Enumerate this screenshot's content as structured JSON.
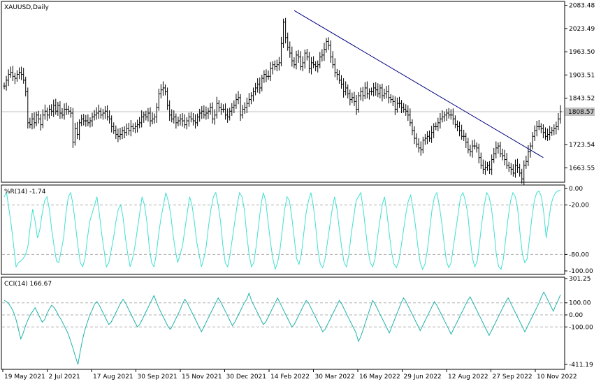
{
  "chart_data": [
    {
      "type": "candlestick",
      "title": "XAUUSD,Daily",
      "ylim": [
        1630,
        2090
      ],
      "yticks": [
        2083.48,
        2023.49,
        1963.5,
        1903.51,
        1843.52,
        1723.54,
        1663.55
      ],
      "ytick_labels": [
        "2083.48",
        "2023.49",
        "1963.50",
        "1903.51",
        "1843.52",
        "1723.54",
        "1663.55"
      ],
      "current_price_label": "1808.57",
      "current_price": 1808.57,
      "x_date_labels": [
        "19 May 2021",
        "2 Jul 2021",
        "17 Aug 2021",
        "30 Sep 2021",
        "15 Nov 2021",
        "30 Dec 2021",
        "14 Feb 2022",
        "30 Mar 2022",
        "16 May 2022",
        "29 Jun 2022",
        "12 Aug 2022",
        "27 Sep 2022",
        "10 Nov 2022"
      ],
      "trendline": {
        "from": [
          "8 Mar 2022",
          2070
        ],
        "to": [
          "7 Nov 2022",
          1690
        ]
      },
      "close": [
        1875,
        1890,
        1905,
        1910,
        1900,
        1895,
        1905,
        1910,
        1905,
        1890,
        1860,
        1780,
        1775,
        1790,
        1780,
        1800,
        1790,
        1775,
        1800,
        1810,
        1800,
        1815,
        1810,
        1825,
        1810,
        1825,
        1805,
        1800,
        1815,
        1815,
        1810,
        1805,
        1730,
        1765,
        1750,
        1780,
        1790,
        1785,
        1785,
        1780,
        1785,
        1795,
        1800,
        1805,
        1810,
        1800,
        1805,
        1810,
        1795,
        1790,
        1770,
        1760,
        1750,
        1745,
        1750,
        1760,
        1755,
        1765,
        1760,
        1770,
        1765,
        1770,
        1775,
        1780,
        1795,
        1800,
        1795,
        1805,
        1785,
        1790,
        1795,
        1820,
        1855,
        1865,
        1870,
        1860,
        1825,
        1800,
        1790,
        1795,
        1780,
        1785,
        1790,
        1785,
        1775,
        1785,
        1795,
        1790,
        1785,
        1780,
        1795,
        1805,
        1810,
        1800,
        1805,
        1810,
        1820,
        1790,
        1800,
        1830,
        1820,
        1815,
        1815,
        1800,
        1795,
        1810,
        1820,
        1825,
        1840,
        1845,
        1800,
        1815,
        1820,
        1830,
        1840,
        1850,
        1860,
        1870,
        1880,
        1870,
        1895,
        1905,
        1900,
        1900,
        1920,
        1930,
        1925,
        1930,
        1935,
        1985,
        2040,
        2000,
        1975,
        1960,
        1940,
        1930,
        1955,
        1950,
        1925,
        1935,
        1960,
        1950,
        1920,
        1935,
        1930,
        1925,
        1930,
        1950,
        1955,
        1970,
        1990,
        1980,
        1950,
        1930,
        1910,
        1905,
        1890,
        1880,
        1860,
        1870,
        1855,
        1840,
        1845,
        1835,
        1815,
        1850,
        1860,
        1850,
        1870,
        1855,
        1860,
        1860,
        1870,
        1865,
        1855,
        1870,
        1850,
        1855,
        1860,
        1845,
        1840,
        1835,
        1815,
        1830,
        1830,
        1820,
        1815,
        1810,
        1800,
        1780,
        1760,
        1740,
        1725,
        1715,
        1710,
        1735,
        1740,
        1745,
        1740,
        1755,
        1770,
        1770,
        1780,
        1790,
        1795,
        1800,
        1805,
        1800,
        1800,
        1790,
        1775,
        1770,
        1760,
        1745,
        1745,
        1730,
        1710,
        1705,
        1720,
        1720,
        1715,
        1690,
        1670,
        1660,
        1665,
        1670,
        1660,
        1685,
        1700,
        1715,
        1720,
        1700,
        1695,
        1685,
        1670,
        1665,
        1660,
        1650,
        1670,
        1665,
        1650,
        1635,
        1670,
        1680,
        1705,
        1720,
        1745,
        1760,
        1770,
        1770,
        1765,
        1755,
        1745,
        1750,
        1755,
        1760,
        1765,
        1770,
        1790,
        1808.57
      ]
    },
    {
      "type": "line",
      "title": "%R(14) -1.74",
      "ylim": [
        -100,
        0
      ],
      "yticks": [
        0,
        -20,
        -80,
        -100
      ],
      "ytick_labels": [
        "0.00",
        "-20.00",
        "-80.00",
        "-100.00"
      ],
      "levels": [
        -20,
        -80
      ],
      "color": "#40e0d0",
      "values": [
        -10,
        -5,
        -25,
        -45,
        -70,
        -95,
        -90,
        -88,
        -85,
        -80,
        -70,
        -45,
        -25,
        -40,
        -60,
        -50,
        -30,
        -15,
        -10,
        -25,
        -50,
        -70,
        -88,
        -90,
        -75,
        -60,
        -30,
        -10,
        -5,
        -20,
        -45,
        -70,
        -90,
        -95,
        -85,
        -60,
        -40,
        -30,
        -20,
        -10,
        -30,
        -55,
        -75,
        -95,
        -90,
        -75,
        -60,
        -40,
        -25,
        -20,
        -35,
        -60,
        -80,
        -95,
        -85,
        -70,
        -50,
        -30,
        -10,
        -20,
        -40,
        -70,
        -90,
        -95,
        -80,
        -55,
        -35,
        -20,
        -5,
        -15,
        -30,
        -55,
        -75,
        -90,
        -80,
        -70,
        -50,
        -30,
        -10,
        -20,
        -40,
        -65,
        -80,
        -95,
        -85,
        -70,
        -45,
        -25,
        -10,
        -5,
        -20,
        -40,
        -70,
        -90,
        -95,
        -80,
        -60,
        -40,
        -20,
        -5,
        -10,
        -25,
        -55,
        -80,
        -95,
        -90,
        -70,
        -45,
        -20,
        -5,
        -15,
        -40,
        -65,
        -85,
        -98,
        -90,
        -75,
        -50,
        -25,
        -10,
        -15,
        -35,
        -60,
        -85,
        -92,
        -80,
        -55,
        -30,
        -15,
        -5,
        -20,
        -45,
        -75,
        -92,
        -96,
        -85,
        -65,
        -45,
        -25,
        -10,
        -25,
        -50,
        -72,
        -90,
        -95,
        -80,
        -55,
        -35,
        -15,
        -10,
        -5,
        -25,
        -50,
        -75,
        -90,
        -95,
        -85,
        -60,
        -40,
        -20,
        -10,
        -30,
        -55,
        -78,
        -92,
        -96,
        -88,
        -70,
        -50,
        -30,
        -15,
        -8,
        -25,
        -45,
        -70,
        -90,
        -98,
        -92,
        -75,
        -50,
        -25,
        -10,
        -5,
        -20,
        -40,
        -65,
        -88,
        -96,
        -90,
        -70,
        -50,
        -30,
        -10,
        -5,
        -15,
        -30,
        -60,
        -85,
        -95,
        -88,
        -65,
        -40,
        -20,
        -5,
        -10,
        -25,
        -50,
        -80,
        -95,
        -98,
        -85,
        -60,
        -35,
        -15,
        -5,
        -10,
        -25,
        -55,
        -80,
        -90,
        -85,
        -60,
        -35,
        -15,
        -5,
        -3,
        -10,
        -30,
        -60,
        -40,
        -20,
        -10,
        -5,
        -3,
        -1.74
      ]
    },
    {
      "type": "line",
      "title": "CCI(14) 166.67",
      "ylim": [
        -411.19,
        301.25
      ],
      "yticks": [
        301.25,
        100,
        0,
        -100,
        -411.19
      ],
      "ytick_labels": [
        "301.25",
        "100.00",
        "0.00",
        "-100.00",
        "-411.19"
      ],
      "levels": [
        100,
        0,
        -100
      ],
      "color": "#20b2aa",
      "values": [
        120,
        110,
        90,
        60,
        20,
        -40,
        -120,
        -200,
        -150,
        -90,
        -40,
        0,
        30,
        60,
        20,
        -20,
        -60,
        -40,
        10,
        50,
        80,
        60,
        30,
        -10,
        -40,
        -80,
        -120,
        -160,
        -220,
        -280,
        -350,
        -411,
        -300,
        -200,
        -120,
        -60,
        0,
        40,
        90,
        110,
        80,
        40,
        0,
        -40,
        -80,
        -60,
        -20,
        20,
        60,
        100,
        130,
        100,
        60,
        20,
        -20,
        -60,
        -100,
        -80,
        -40,
        0,
        40,
        80,
        120,
        160,
        110,
        60,
        20,
        -20,
        -60,
        -100,
        -120,
        -80,
        -40,
        0,
        40,
        90,
        130,
        100,
        60,
        20,
        -20,
        -60,
        -100,
        -140,
        -100,
        -60,
        -20,
        20,
        60,
        100,
        140,
        110,
        70,
        30,
        -10,
        -50,
        -90,
        -60,
        -20,
        20,
        60,
        100,
        130,
        180,
        120,
        80,
        40,
        0,
        -40,
        -80,
        -60,
        -20,
        20,
        60,
        100,
        140,
        100,
        60,
        20,
        -20,
        -60,
        -100,
        -80,
        -40,
        0,
        40,
        80,
        120,
        100,
        60,
        20,
        -20,
        -60,
        -100,
        -140,
        -120,
        -80,
        -40,
        0,
        40,
        80,
        120,
        90,
        50,
        10,
        -30,
        -70,
        -110,
        -150,
        -220,
        -180,
        -120,
        -60,
        0,
        60,
        120,
        90,
        50,
        10,
        -30,
        -70,
        -110,
        -150,
        -100,
        -50,
        0,
        50,
        100,
        140,
        110,
        70,
        30,
        -10,
        -50,
        -90,
        -130,
        -90,
        -50,
        -10,
        30,
        70,
        110,
        80,
        40,
        0,
        -40,
        -80,
        -120,
        -160,
        -120,
        -80,
        -40,
        0,
        40,
        80,
        120,
        150,
        110,
        70,
        30,
        -10,
        -50,
        -90,
        -130,
        -170,
        -130,
        -90,
        -50,
        -10,
        30,
        70,
        110,
        140,
        100,
        60,
        20,
        -20,
        -60,
        -100,
        -140,
        -100,
        -60,
        -20,
        20,
        60,
        100,
        150,
        190,
        150,
        110,
        70,
        30,
        80,
        120,
        166.67
      ]
    }
  ]
}
